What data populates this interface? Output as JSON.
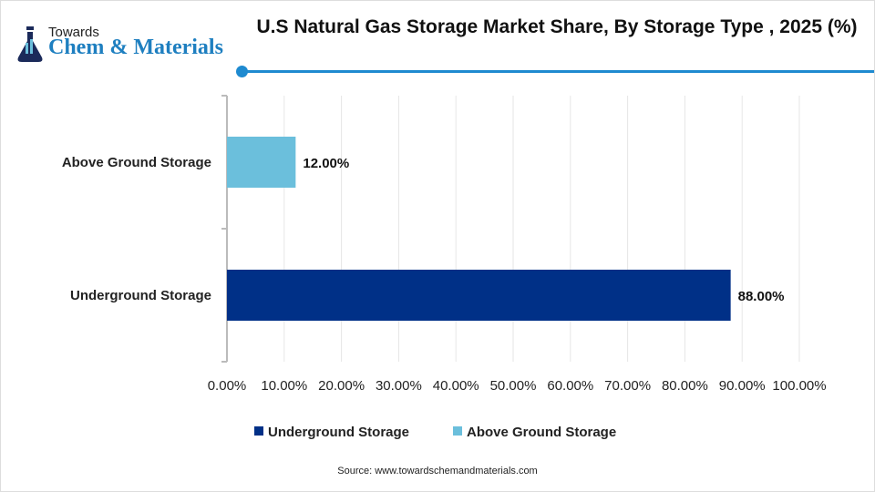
{
  "logo": {
    "line1": "Towards",
    "line2": "Chem & Materials"
  },
  "chart_data": {
    "type": "bar",
    "orientation": "horizontal",
    "title": "U.S Natural Gas Storage Market Share, By Storage Type , 2025 (%)",
    "categories": [
      "Above Ground Storage",
      "Underground Storage"
    ],
    "values": [
      12.0,
      88.0
    ],
    "data_labels": [
      "12.00%",
      "88.00%"
    ],
    "colors": [
      "#6bbfdc",
      "#003087"
    ],
    "xlim": [
      0,
      100
    ],
    "x_ticks": [
      "0.00%",
      "10.00%",
      "20.00%",
      "30.00%",
      "40.00%",
      "50.00%",
      "60.00%",
      "70.00%",
      "80.00%",
      "90.00%",
      "100.00%"
    ],
    "grid": true,
    "legend": {
      "placement": "bottom",
      "entries": [
        {
          "name": "Underground Storage",
          "color": "#003087"
        },
        {
          "name": "Above Ground Storage",
          "color": "#6bbfdc"
        }
      ]
    }
  },
  "source": "Source: www.towardschemandmaterials.com",
  "accent": "#1e8ad0"
}
